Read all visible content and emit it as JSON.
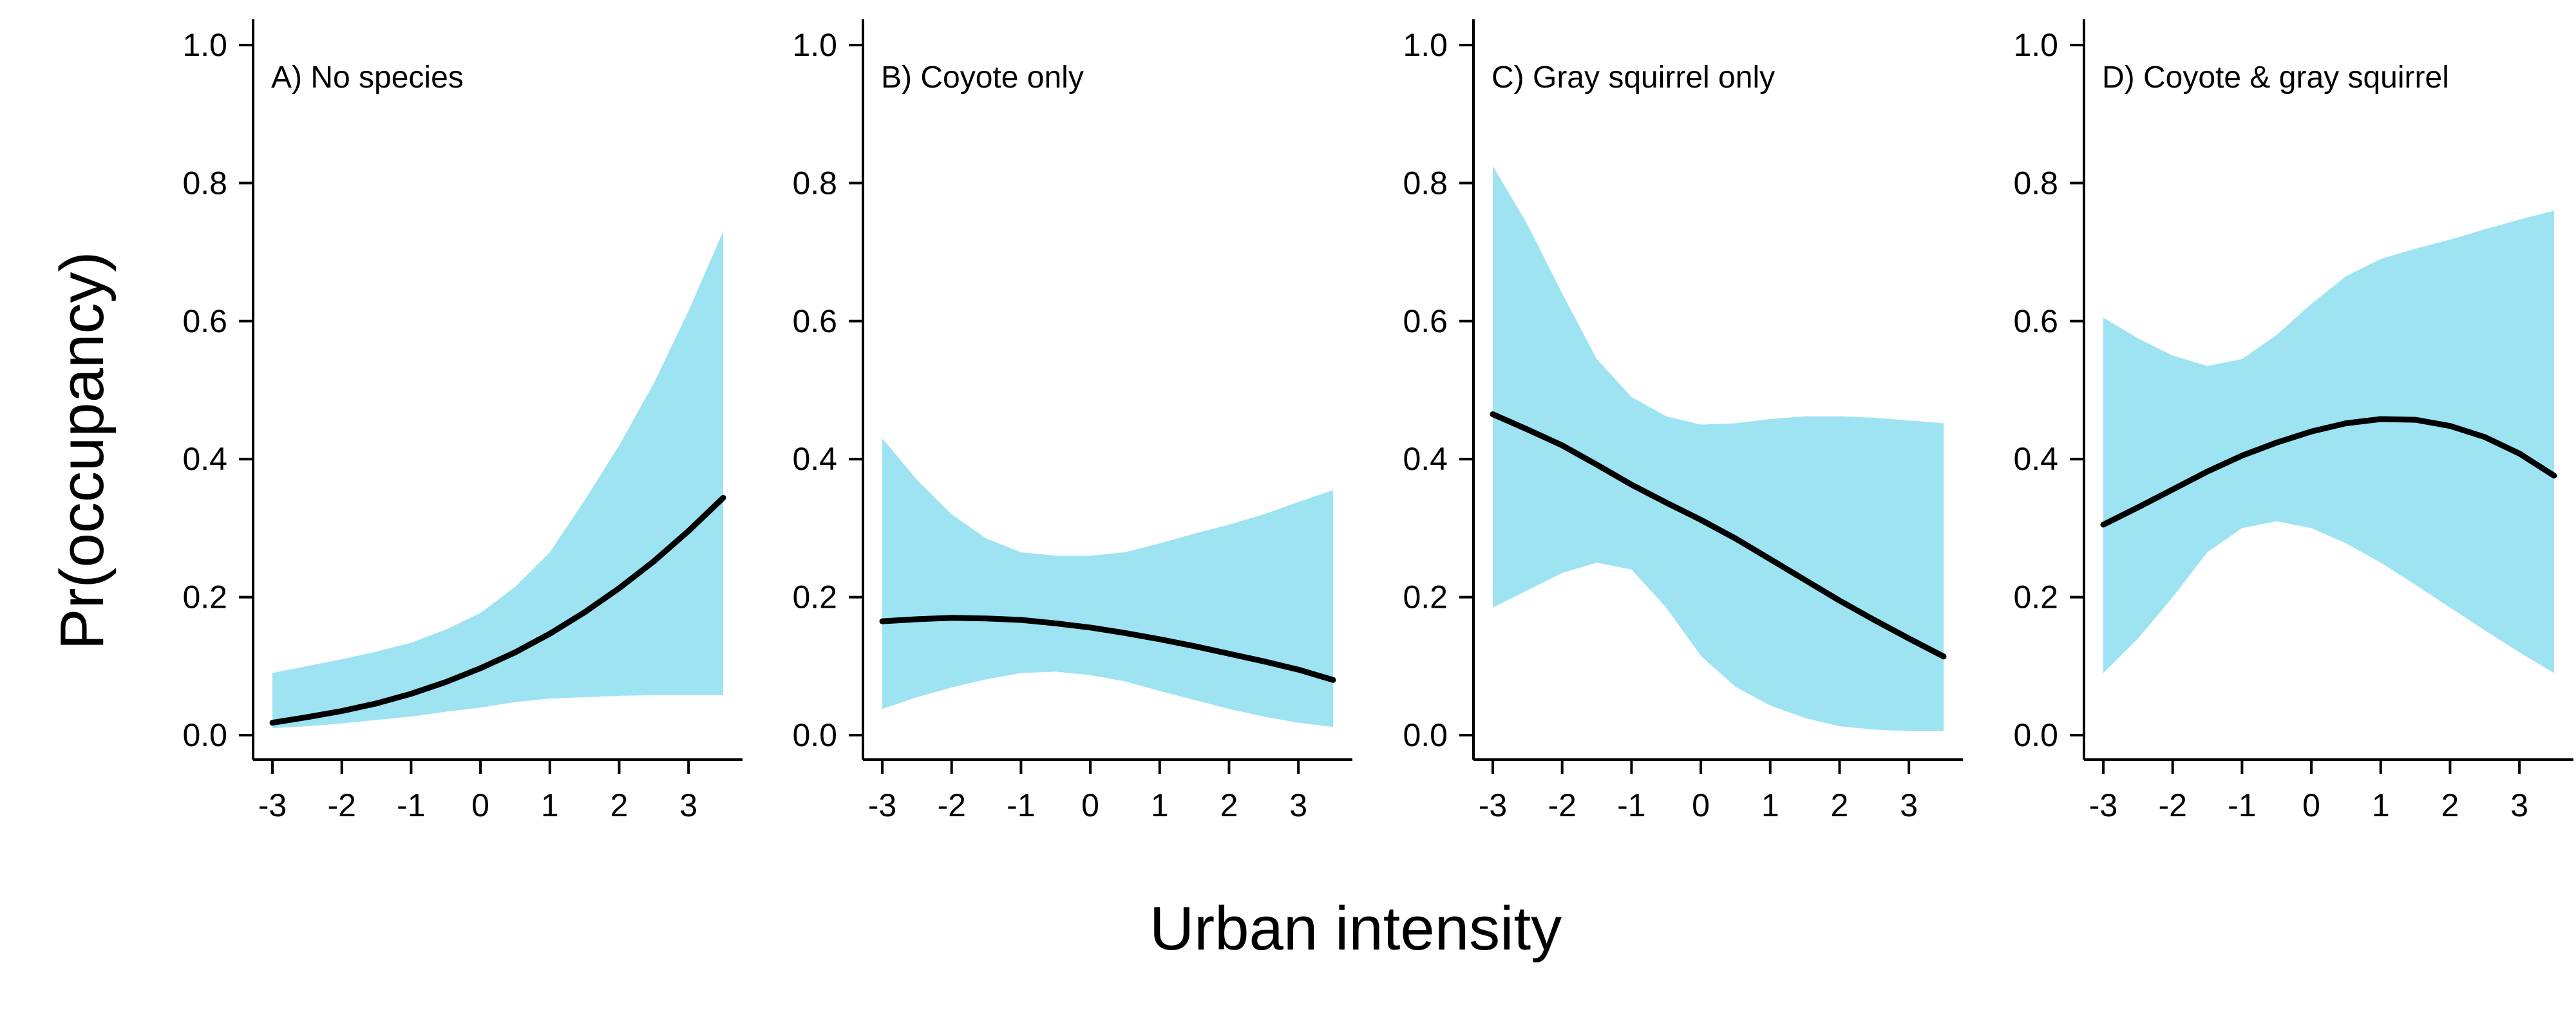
{
  "figure": {
    "ylabel": "Pr(occupancy)",
    "xlabel": "Urban intensity"
  },
  "colors": {
    "ci_band": "#9de3f2",
    "line": "#000000",
    "axis": "#000000"
  },
  "chart_data": [
    {
      "type": "line",
      "title": "A) No species",
      "xlabel": "Urban intensity",
      "ylabel": "Pr(occupancy)",
      "xlim": [
        -3,
        3.5
      ],
      "ylim": [
        0,
        1
      ],
      "xticks": [
        -3,
        -2,
        -1,
        0,
        1,
        2,
        3
      ],
      "yticks": [
        0.0,
        0.2,
        0.4,
        0.6,
        0.8,
        1.0
      ],
      "grid": false,
      "x": [
        -3,
        -2.5,
        -2,
        -1.5,
        -1,
        -0.5,
        0,
        0.5,
        1,
        1.5,
        2,
        2.5,
        3,
        3.5
      ],
      "series": [
        {
          "values": [
            0.018,
            0.026,
            0.035,
            0.046,
            0.06,
            0.077,
            0.097,
            0.12,
            0.147,
            0.178,
            0.213,
            0.252,
            0.296,
            0.344
          ]
        }
      ],
      "ci_lower": [
        0.01,
        0.013,
        0.017,
        0.022,
        0.027,
        0.034,
        0.04,
        0.048,
        0.053,
        0.055,
        0.057,
        0.058,
        0.058,
        0.058
      ],
      "ci_upper": [
        0.09,
        0.1,
        0.11,
        0.121,
        0.134,
        0.153,
        0.177,
        0.215,
        0.265,
        0.34,
        0.42,
        0.51,
        0.615,
        0.73
      ]
    },
    {
      "type": "line",
      "title": "B) Coyote only",
      "xlabel": "Urban intensity",
      "ylabel": "Pr(occupancy)",
      "xlim": [
        -3,
        3.5
      ],
      "ylim": [
        0,
        1
      ],
      "xticks": [
        -3,
        -2,
        -1,
        0,
        1,
        2,
        3
      ],
      "yticks": [
        0.0,
        0.2,
        0.4,
        0.6,
        0.8,
        1.0
      ],
      "grid": false,
      "x": [
        -3,
        -2.5,
        -2,
        -1.5,
        -1,
        -0.5,
        0,
        0.5,
        1,
        1.5,
        2,
        2.5,
        3,
        3.5
      ],
      "series": [
        {
          "values": [
            0.165,
            0.168,
            0.17,
            0.169,
            0.167,
            0.162,
            0.156,
            0.148,
            0.139,
            0.129,
            0.118,
            0.107,
            0.095,
            0.08
          ]
        }
      ],
      "ci_lower": [
        0.038,
        0.055,
        0.069,
        0.081,
        0.09,
        0.092,
        0.087,
        0.078,
        0.064,
        0.051,
        0.038,
        0.027,
        0.018,
        0.012
      ],
      "ci_upper": [
        0.43,
        0.37,
        0.32,
        0.285,
        0.265,
        0.26,
        0.26,
        0.265,
        0.278,
        0.292,
        0.305,
        0.32,
        0.338,
        0.355
      ]
    },
    {
      "type": "line",
      "title": "C) Gray squirrel only",
      "xlabel": "Urban intensity",
      "ylabel": "Pr(occupancy)",
      "xlim": [
        -3,
        3.5
      ],
      "ylim": [
        0,
        1
      ],
      "xticks": [
        -3,
        -2,
        -1,
        0,
        1,
        2,
        3
      ],
      "yticks": [
        0.0,
        0.2,
        0.4,
        0.6,
        0.8,
        1.0
      ],
      "grid": false,
      "x": [
        -3,
        -2.5,
        -2,
        -1.5,
        -1,
        -0.5,
        0,
        0.5,
        1,
        1.5,
        2,
        2.5,
        3,
        3.5
      ],
      "series": [
        {
          "values": [
            0.465,
            0.443,
            0.42,
            0.392,
            0.363,
            0.337,
            0.312,
            0.285,
            0.255,
            0.225,
            0.195,
            0.167,
            0.14,
            0.114
          ]
        }
      ],
      "ci_lower": [
        0.185,
        0.21,
        0.235,
        0.25,
        0.24,
        0.185,
        0.115,
        0.07,
        0.043,
        0.025,
        0.013,
        0.008,
        0.006,
        0.006
      ],
      "ci_upper": [
        0.825,
        0.74,
        0.64,
        0.545,
        0.49,
        0.462,
        0.45,
        0.452,
        0.458,
        0.462,
        0.462,
        0.46,
        0.456,
        0.452
      ]
    },
    {
      "type": "line",
      "title": "D) Coyote & gray squirrel",
      "xlabel": "Urban intensity",
      "ylabel": "Pr(occupancy)",
      "xlim": [
        -3,
        3.5
      ],
      "ylim": [
        0,
        1
      ],
      "xticks": [
        -3,
        -2,
        -1,
        0,
        1,
        2,
        3
      ],
      "yticks": [
        0.0,
        0.2,
        0.4,
        0.6,
        0.8,
        1.0
      ],
      "grid": false,
      "x": [
        -3,
        -2.5,
        -2,
        -1.5,
        -1,
        -0.5,
        0,
        0.5,
        1,
        1.5,
        2,
        2.5,
        3,
        3.5
      ],
      "series": [
        {
          "values": [
            0.305,
            0.33,
            0.356,
            0.382,
            0.405,
            0.424,
            0.44,
            0.452,
            0.458,
            0.457,
            0.448,
            0.432,
            0.408,
            0.376
          ]
        }
      ],
      "ci_lower": [
        0.09,
        0.14,
        0.2,
        0.265,
        0.3,
        0.31,
        0.3,
        0.278,
        0.25,
        0.218,
        0.185,
        0.152,
        0.12,
        0.09
      ],
      "ci_upper": [
        0.605,
        0.575,
        0.55,
        0.535,
        0.545,
        0.58,
        0.625,
        0.665,
        0.69,
        0.705,
        0.718,
        0.733,
        0.747,
        0.76
      ]
    }
  ]
}
